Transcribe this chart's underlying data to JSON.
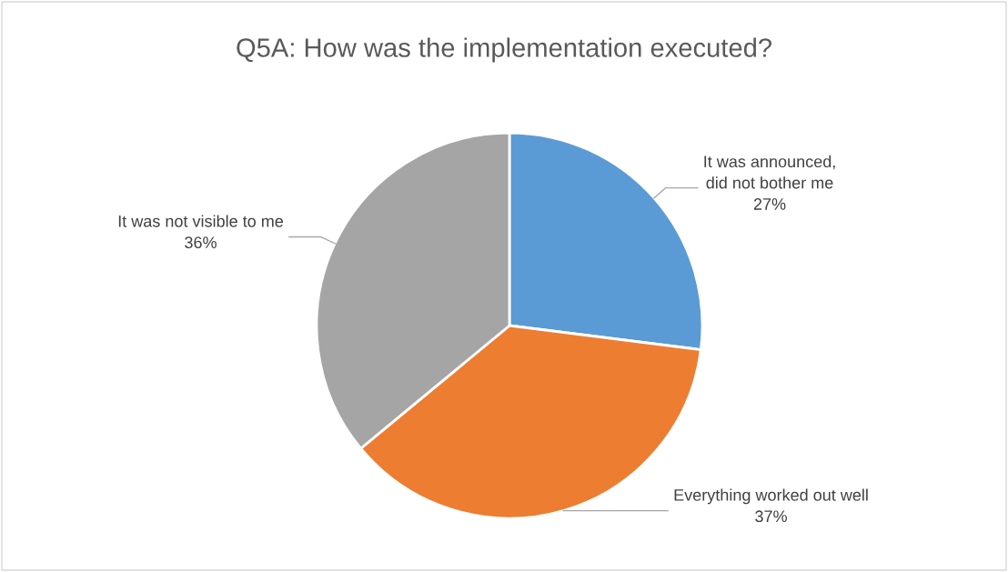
{
  "chart_data": {
    "type": "pie",
    "title": "Q5A: How was the implementation executed?",
    "categories": [
      "It was announced,\ndid not bother me",
      "Everything worked out well",
      "It was not visible to me"
    ],
    "values": [
      27,
      37,
      36
    ],
    "colors": [
      "#5b9bd5",
      "#ed7d31",
      "#a5a5a5"
    ],
    "value_labels": [
      "27%",
      "37%",
      "36%"
    ],
    "legend": false
  }
}
